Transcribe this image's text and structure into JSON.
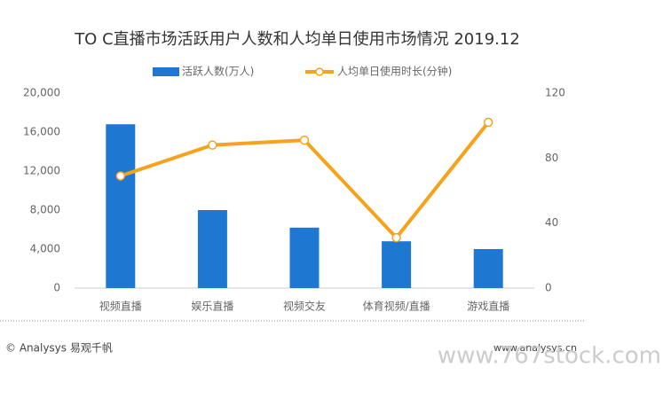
{
  "chart_data": {
    "type": "bar",
    "title": "TO C直播市场活跃用户人数和人均单日使用市场情况 2019.12",
    "categories": [
      "视频直播",
      "娱乐直播",
      "视频交友",
      "体育视频/直播",
      "游戏直播"
    ],
    "series": [
      {
        "name": "活跃人数(万人)",
        "type": "bar",
        "color": "#1e78d2",
        "values": [
          16800,
          8000,
          6200,
          4800,
          4000
        ]
      },
      {
        "name": "人均单日使用时长(分钟)",
        "type": "line",
        "axis": "y2",
        "color": "#f7a21b",
        "values": [
          69,
          88,
          91,
          31,
          102
        ]
      }
    ],
    "ylim": [
      0,
      20000
    ],
    "yticks": [
      0,
      {
        "value": 4000,
        "label": "4,000"
      },
      {
        "value": 8000,
        "label": "8,000"
      },
      {
        "value": 12000,
        "label": "12,000"
      },
      {
        "value": 16000,
        "label": "16,000"
      },
      {
        "value": 20000,
        "label": "20,000"
      }
    ],
    "y2lim": [
      0,
      120
    ],
    "y2ticks": [
      0,
      40,
      80,
      120
    ],
    "source": "© Analysys 易观千帆",
    "website": "www.analysys.cn",
    "watermark": "www.767stock.com"
  }
}
